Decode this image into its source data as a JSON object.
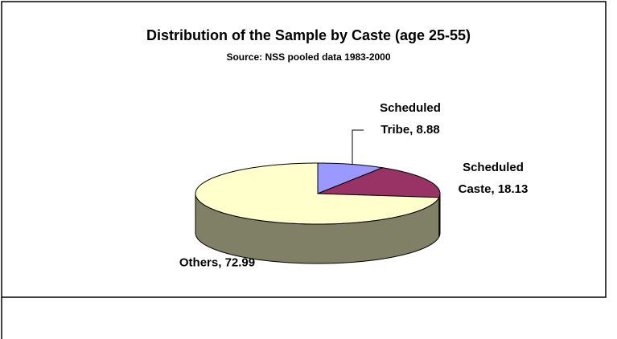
{
  "chart_data": {
    "type": "pie3d",
    "title": "Distribution of the Sample by Caste (age 25-55)",
    "subtitle": "Source: NSS pooled data 1983-2000",
    "values": [
      8.88,
      18.13,
      72.99
    ],
    "value_labels": [
      "Scheduled Tribe, 8.88",
      "Scheduled Caste, 18.13",
      "Others, 72.99"
    ],
    "colors": [
      "#9999ff",
      "#993366",
      "#ffffcc"
    ]
  }
}
